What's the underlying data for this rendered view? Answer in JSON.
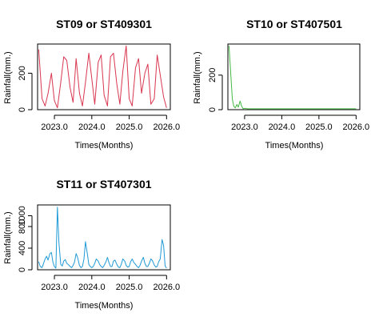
{
  "chart_data": [
    {
      "type": "line",
      "title": "ST09 or ST409301",
      "xlabel": "Times(Months)",
      "ylabel": "Rainfall(mm.)",
      "color": "#d9364f",
      "xlim": [
        2022.55,
        2026.1
      ],
      "ylim": [
        0,
        360
      ],
      "xticks": [
        2023.0,
        2024.0,
        2025.0,
        2026.0
      ],
      "xtick_labels": [
        "2023.0",
        "2024.0",
        "2025.0",
        "2026.0"
      ],
      "yticks": [
        0,
        200
      ],
      "ytick_labels": [
        "0",
        "200"
      ],
      "series": [
        {
          "x": [
            2022.58,
            2022.67,
            2022.75,
            2022.83,
            2022.92,
            2023.0,
            2023.08,
            2023.17,
            2023.25,
            2023.33,
            2023.42,
            2023.5,
            2023.58,
            2023.67,
            2023.75,
            2023.83,
            2023.92,
            2024.0,
            2024.08,
            2024.17,
            2024.25,
            2024.33,
            2024.42,
            2024.5,
            2024.58,
            2024.67,
            2024.75,
            2024.83,
            2024.92,
            2025.0,
            2025.08,
            2025.17,
            2025.25,
            2025.33,
            2025.42,
            2025.5,
            2025.58,
            2025.67,
            2025.75,
            2025.83,
            2025.92,
            2026.0
          ],
          "y": [
            330,
            60,
            20,
            90,
            200,
            50,
            10,
            150,
            290,
            270,
            120,
            40,
            280,
            90,
            20,
            150,
            310,
            170,
            30,
            260,
            300,
            80,
            20,
            290,
            310,
            140,
            30,
            210,
            350,
            60,
            20,
            230,
            280,
            90,
            200,
            250,
            30,
            60,
            300,
            190,
            70,
            10
          ]
        }
      ]
    },
    {
      "type": "line",
      "title": "ST10 or ST407501",
      "xlabel": "Times(Months)",
      "ylabel": "Rainfall(mm.)",
      "color": "#44b944",
      "xlim": [
        2022.55,
        2026.1
      ],
      "ylim": [
        0,
        380
      ],
      "xticks": [
        2023.0,
        2024.0,
        2025.0,
        2026.0
      ],
      "xtick_labels": [
        "2023.0",
        "2024.0",
        "2025.0",
        "2026.0"
      ],
      "yticks": [
        0,
        200
      ],
      "ytick_labels": [
        "0",
        "200"
      ],
      "series": [
        {
          "x": [
            2022.58,
            2022.63,
            2022.67,
            2022.71,
            2022.75,
            2022.79,
            2022.83,
            2022.88,
            2022.92,
            2022.96,
            2023.0,
            2023.08,
            2023.17,
            2023.5,
            2024.0,
            2024.5,
            2025.0,
            2025.5,
            2026.0
          ],
          "y": [
            370,
            200,
            60,
            20,
            10,
            30,
            15,
            50,
            20,
            5,
            8,
            5,
            5,
            5,
            5,
            5,
            5,
            5,
            5
          ]
        }
      ]
    },
    {
      "type": "line",
      "title": "ST11 or ST407301",
      "xlabel": "Times(Months)",
      "ylabel": "Rainfall(mm.)",
      "color": "#1f9ad6",
      "xlim": [
        2022.55,
        2026.1
      ],
      "ylim": [
        0,
        1200
      ],
      "xticks": [
        2023.0,
        2024.0,
        2025.0,
        2026.0
      ],
      "xtick_labels": [
        "2023.0",
        "2024.0",
        "2025.0",
        "2026.0"
      ],
      "yticks": [
        0,
        400,
        800,
        1000
      ],
      "ytick_labels": [
        "0",
        "400",
        "800",
        "1000"
      ],
      "series": [
        {
          "x": [
            2022.58,
            2022.62,
            2022.67,
            2022.71,
            2022.75,
            2022.79,
            2022.83,
            2022.88,
            2022.92,
            2022.96,
            2023.0,
            2023.04,
            2023.08,
            2023.12,
            2023.17,
            2023.21,
            2023.25,
            2023.29,
            2023.33,
            2023.38,
            2023.42,
            2023.46,
            2023.5,
            2023.54,
            2023.58,
            2023.62,
            2023.67,
            2023.71,
            2023.75,
            2023.79,
            2023.83,
            2023.88,
            2023.92,
            2023.96,
            2024.0,
            2024.04,
            2024.08,
            2024.12,
            2024.17,
            2024.21,
            2024.25,
            2024.29,
            2024.33,
            2024.38,
            2024.42,
            2024.46,
            2024.5,
            2024.54,
            2024.58,
            2024.62,
            2024.67,
            2024.71,
            2024.75,
            2024.79,
            2024.83,
            2024.88,
            2024.92,
            2024.96,
            2025.0,
            2025.04,
            2025.08,
            2025.12,
            2025.17,
            2025.21,
            2025.25,
            2025.29,
            2025.33,
            2025.38,
            2025.42,
            2025.46,
            2025.5,
            2025.54,
            2025.58,
            2025.62,
            2025.67,
            2025.71,
            2025.75,
            2025.79,
            2025.83,
            2025.88,
            2025.92,
            2025.96,
            2026.0
          ],
          "y": [
            150,
            60,
            40,
            120,
            200,
            250,
            180,
            300,
            320,
            140,
            60,
            30,
            1160,
            500,
            100,
            70,
            160,
            190,
            120,
            90,
            60,
            40,
            80,
            150,
            300,
            230,
            80,
            40,
            60,
            200,
            520,
            300,
            100,
            60,
            40,
            60,
            120,
            200,
            160,
            100,
            60,
            40,
            80,
            150,
            230,
            130,
            60,
            60,
            160,
            180,
            100,
            50,
            40,
            100,
            200,
            160,
            80,
            50,
            60,
            150,
            200,
            140,
            100,
            60,
            40,
            80,
            160,
            230,
            120,
            60,
            60,
            120,
            200,
            170,
            90,
            50,
            60,
            150,
            200,
            560,
            450,
            70,
            30
          ]
        }
      ]
    }
  ]
}
